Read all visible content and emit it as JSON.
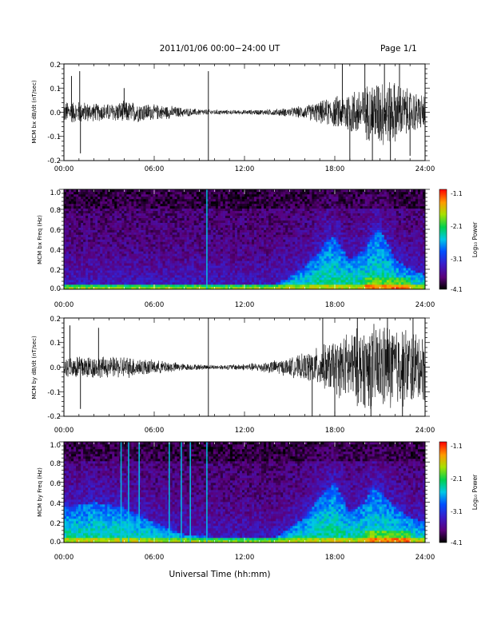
{
  "header": {
    "title": "2011/01/06  00:00−24:00 UT",
    "page": "Page 1/1"
  },
  "x_axis_label": "Universal Time (hh:mm)",
  "colorbar": {
    "label": "Log₁₀ Power",
    "ticks": [
      "-1.1",
      "-2.1",
      "-3.1",
      "-4.1"
    ]
  },
  "chart_data": [
    {
      "type": "line",
      "ylabel": "MCM bx dB/dt (nT/sec)",
      "x_ticks": [
        "00:00",
        "06:00",
        "12:00",
        "18:00",
        "24:00"
      ],
      "y_ticks": [
        "0.2",
        "0.1",
        "0.0",
        "-0.1",
        "-0.2"
      ],
      "xlim": [
        0,
        24
      ],
      "ylim": [
        -0.2,
        0.2
      ],
      "x_unit": "hours UT",
      "envelope": {
        "x": [
          0,
          1,
          2,
          3,
          4,
          5,
          6,
          7,
          8,
          9,
          10,
          11,
          12,
          13,
          14,
          15,
          16,
          17,
          18,
          19,
          20,
          21,
          22,
          23,
          24
        ],
        "amplitude": [
          0.05,
          0.05,
          0.04,
          0.04,
          0.05,
          0.045,
          0.035,
          0.03,
          0.02,
          0.015,
          0.012,
          0.01,
          0.01,
          0.012,
          0.015,
          0.02,
          0.03,
          0.05,
          0.07,
          0.1,
          0.12,
          0.16,
          0.14,
          0.1,
          0.08
        ]
      },
      "spikes": [
        {
          "x": 0.5,
          "y": 0.15
        },
        {
          "x": 1.05,
          "y": 0.17
        },
        {
          "x": 1.1,
          "y": -0.17
        },
        {
          "x": 4.0,
          "y": 0.1
        },
        {
          "x": 9.6,
          "y": 0.17
        },
        {
          "x": 9.6,
          "y": -0.2
        },
        {
          "x": 18.5,
          "y": 0.2
        },
        {
          "x": 19.0,
          "y": -0.2
        },
        {
          "x": 20.0,
          "y": 0.2
        },
        {
          "x": 20.5,
          "y": -0.2
        },
        {
          "x": 21.3,
          "y": 0.2
        },
        {
          "x": 21.7,
          "y": -0.2
        },
        {
          "x": 22.3,
          "y": 0.2
        },
        {
          "x": 23.0,
          "y": -0.18
        }
      ]
    },
    {
      "type": "heatmap",
      "ylabel": "MCM bx Freq (Hz)",
      "x_ticks": [
        "00:00",
        "06:00",
        "12:00",
        "18:00",
        "24:00"
      ],
      "y_ticks": [
        "1.0",
        "0.8",
        "0.6",
        "0.4",
        "0.2",
        "0.0"
      ],
      "xlim": [
        0,
        24
      ],
      "ylim": [
        0,
        1
      ],
      "zlim": [
        -4.1,
        -1.1
      ],
      "activity_hump": [
        {
          "x": 14,
          "height": 0.05
        },
        {
          "x": 15,
          "height": 0.12
        },
        {
          "x": 16,
          "height": 0.22
        },
        {
          "x": 17,
          "height": 0.38
        },
        {
          "x": 17.5,
          "height": 0.5
        },
        {
          "x": 18,
          "height": 0.52
        },
        {
          "x": 19,
          "height": 0.3
        },
        {
          "x": 20,
          "height": 0.4
        },
        {
          "x": 20.5,
          "height": 0.55
        },
        {
          "x": 21,
          "height": 0.6
        },
        {
          "x": 22,
          "height": 0.3
        },
        {
          "x": 23,
          "height": 0.2
        },
        {
          "x": 24,
          "height": 0.15
        }
      ],
      "vertical_lines": [
        9.5
      ]
    },
    {
      "type": "line",
      "ylabel": "MCM by dB/dt (nT/sec)",
      "x_ticks": [
        "00:00",
        "06:00",
        "12:00",
        "18:00",
        "24:00"
      ],
      "y_ticks": [
        "0.2",
        "0.1",
        "0.0",
        "-0.1",
        "-0.2"
      ],
      "xlim": [
        0,
        24
      ],
      "ylim": [
        -0.2,
        0.2
      ],
      "x_unit": "hours UT",
      "envelope": {
        "x": [
          0,
          1,
          2,
          3,
          4,
          5,
          6,
          7,
          8,
          9,
          10,
          11,
          12,
          13,
          14,
          15,
          16,
          17,
          18,
          19,
          20,
          21,
          22,
          23,
          24
        ],
        "amplitude": [
          0.04,
          0.06,
          0.05,
          0.045,
          0.05,
          0.04,
          0.03,
          0.025,
          0.015,
          0.012,
          0.01,
          0.012,
          0.015,
          0.02,
          0.03,
          0.04,
          0.06,
          0.09,
          0.12,
          0.16,
          0.18,
          0.2,
          0.19,
          0.17,
          0.15
        ]
      },
      "spikes": [
        {
          "x": 0.4,
          "y": 0.17
        },
        {
          "x": 1.1,
          "y": -0.17
        },
        {
          "x": 2.3,
          "y": 0.16
        },
        {
          "x": 9.6,
          "y": 0.2
        },
        {
          "x": 9.6,
          "y": -0.2
        },
        {
          "x": 16.5,
          "y": -0.2
        },
        {
          "x": 17.2,
          "y": 0.2
        },
        {
          "x": 18.0,
          "y": -0.2
        },
        {
          "x": 19.5,
          "y": 0.2
        },
        {
          "x": 20.4,
          "y": -0.2
        },
        {
          "x": 21.5,
          "y": 0.2
        },
        {
          "x": 22.5,
          "y": -0.2
        },
        {
          "x": 23.2,
          "y": 0.2
        }
      ]
    },
    {
      "type": "heatmap",
      "ylabel": "MCM by Freq (Hz)",
      "x_ticks": [
        "00:00",
        "06:00",
        "12:00",
        "18:00",
        "24:00"
      ],
      "y_ticks": [
        "1.0",
        "0.8",
        "0.6",
        "0.4",
        "0.2",
        "0.0"
      ],
      "xlim": [
        0,
        24
      ],
      "ylim": [
        0,
        1
      ],
      "zlim": [
        -4.1,
        -1.1
      ],
      "activity_hump": [
        {
          "x": 0,
          "height": 0.35
        },
        {
          "x": 2,
          "height": 0.4
        },
        {
          "x": 4,
          "height": 0.35
        },
        {
          "x": 6,
          "height": 0.2
        },
        {
          "x": 8,
          "height": 0.08
        },
        {
          "x": 10,
          "height": 0.05
        },
        {
          "x": 12,
          "height": 0.04
        },
        {
          "x": 14,
          "height": 0.05
        },
        {
          "x": 15,
          "height": 0.15
        },
        {
          "x": 16,
          "height": 0.25
        },
        {
          "x": 17,
          "height": 0.45
        },
        {
          "x": 18,
          "height": 0.6
        },
        {
          "x": 19,
          "height": 0.3
        },
        {
          "x": 20,
          "height": 0.4
        },
        {
          "x": 20.5,
          "height": 0.55
        },
        {
          "x": 21,
          "height": 0.5
        },
        {
          "x": 22,
          "height": 0.35
        },
        {
          "x": 23,
          "height": 0.25
        },
        {
          "x": 24,
          "height": 0.2
        }
      ],
      "vertical_lines": [
        3.8,
        4.3,
        5.0,
        7.0,
        7.8,
        8.4,
        9.5
      ]
    }
  ]
}
